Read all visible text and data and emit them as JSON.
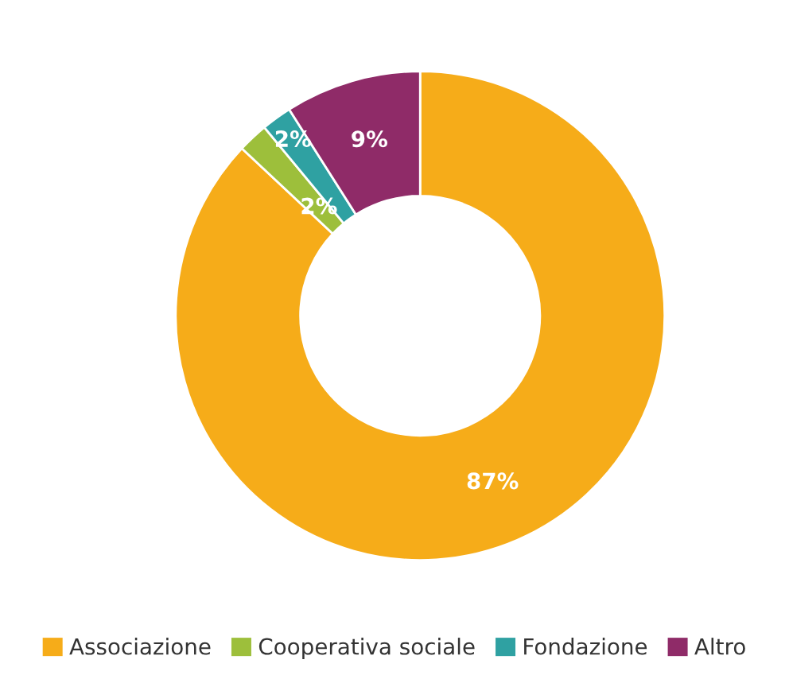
{
  "chart_data": {
    "type": "donut",
    "categories": [
      "Associazione",
      "Cooperativa sociale",
      "Fondazione",
      "Altro"
    ],
    "values": [
      87,
      2,
      2,
      9
    ],
    "colors": [
      "#f6ac19",
      "#9dbf3b",
      "#2fa1a2",
      "#8f2b68"
    ],
    "value_labels": [
      "87%",
      "2%",
      "2%",
      "9%"
    ],
    "legend": "bottom"
  }
}
